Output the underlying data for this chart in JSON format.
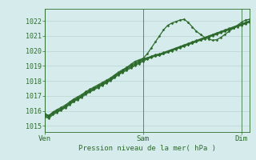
{
  "bg_color": "#d6ecec",
  "grid_color": "#b8d4d4",
  "line_color": "#2d6b2d",
  "ylabel_ticks": [
    1015,
    1016,
    1017,
    1018,
    1019,
    1020,
    1021,
    1022
  ],
  "ylim": [
    1014.6,
    1022.8
  ],
  "xlabel": "Pression niveau de la mer( hPa )",
  "xtick_labels": [
    "Ven",
    "Sam",
    "Dim"
  ],
  "xtick_positions": [
    0.0,
    0.48,
    0.96
  ],
  "xlim": [
    0.0,
    1.0
  ],
  "series_main": {
    "x": [
      0.0,
      0.02,
      0.04,
      0.06,
      0.08,
      0.1,
      0.12,
      0.14,
      0.16,
      0.18,
      0.2,
      0.22,
      0.24,
      0.26,
      0.28,
      0.3,
      0.32,
      0.34,
      0.36,
      0.38,
      0.4,
      0.42,
      0.44,
      0.46,
      0.48,
      0.5,
      0.52,
      0.54,
      0.56,
      0.58,
      0.6,
      0.62,
      0.64,
      0.66,
      0.68,
      0.7,
      0.72,
      0.74,
      0.76,
      0.78,
      0.8,
      0.82,
      0.84,
      0.86,
      0.88,
      0.9,
      0.92,
      0.94,
      0.96,
      0.98,
      1.0
    ],
    "y": [
      1015.8,
      1015.7,
      1015.9,
      1016.0,
      1016.1,
      1016.3,
      1016.5,
      1016.7,
      1016.8,
      1017.0,
      1017.2,
      1017.3,
      1017.5,
      1017.6,
      1017.8,
      1017.9,
      1018.1,
      1018.3,
      1018.5,
      1018.7,
      1018.9,
      1019.1,
      1019.3,
      1019.4,
      1019.5,
      1019.8,
      1020.2,
      1020.6,
      1021.0,
      1021.4,
      1021.7,
      1021.85,
      1021.95,
      1022.05,
      1022.1,
      1021.9,
      1021.6,
      1021.3,
      1021.1,
      1020.9,
      1020.8,
      1020.7,
      1020.75,
      1020.9,
      1021.1,
      1021.3,
      1021.5,
      1021.7,
      1021.9,
      1022.05,
      1022.1
    ]
  },
  "series_bundle": [
    {
      "x": [
        0.0,
        0.02,
        0.04,
        0.06,
        0.08,
        0.1,
        0.12,
        0.14,
        0.16,
        0.18,
        0.2,
        0.22,
        0.24,
        0.26,
        0.28,
        0.3,
        0.32,
        0.34,
        0.36,
        0.38,
        0.4,
        0.42,
        0.44,
        0.46,
        0.48,
        0.5,
        0.52,
        0.54,
        0.56,
        0.58,
        0.6,
        0.62,
        0.64,
        0.66,
        0.68,
        0.7,
        0.72,
        0.74,
        0.76,
        0.78,
        0.8,
        0.82,
        0.84,
        0.86,
        0.88,
        0.9,
        0.92,
        0.94,
        0.96,
        0.98,
        1.0
      ],
      "y": [
        1015.6,
        1015.5,
        1015.75,
        1015.9,
        1016.05,
        1016.2,
        1016.4,
        1016.6,
        1016.75,
        1016.9,
        1017.1,
        1017.25,
        1017.4,
        1017.55,
        1017.7,
        1017.85,
        1018.0,
        1018.2,
        1018.4,
        1018.55,
        1018.7,
        1018.85,
        1019.0,
        1019.15,
        1019.3,
        1019.45,
        1019.55,
        1019.65,
        1019.7,
        1019.8,
        1019.9,
        1020.0,
        1020.1,
        1020.2,
        1020.3,
        1020.4,
        1020.5,
        1020.6,
        1020.7,
        1020.8,
        1020.9,
        1021.0,
        1021.1,
        1021.2,
        1021.3,
        1021.4,
        1021.5,
        1021.6,
        1021.7,
        1021.8,
        1021.9
      ]
    },
    {
      "x": [
        0.0,
        0.02,
        0.04,
        0.06,
        0.08,
        0.1,
        0.12,
        0.14,
        0.16,
        0.18,
        0.2,
        0.22,
        0.24,
        0.26,
        0.28,
        0.3,
        0.32,
        0.34,
        0.36,
        0.38,
        0.4,
        0.42,
        0.44,
        0.46,
        0.48,
        0.5,
        0.52,
        0.54,
        0.56,
        0.58,
        0.6,
        0.62,
        0.64,
        0.66,
        0.68,
        0.7,
        0.72,
        0.74,
        0.76,
        0.78,
        0.8,
        0.82,
        0.84,
        0.86,
        0.88,
        0.9,
        0.92,
        0.94,
        0.96,
        0.98,
        1.0
      ],
      "y": [
        1015.65,
        1015.55,
        1015.8,
        1015.95,
        1016.1,
        1016.25,
        1016.45,
        1016.65,
        1016.8,
        1016.95,
        1017.15,
        1017.3,
        1017.45,
        1017.6,
        1017.75,
        1017.9,
        1018.05,
        1018.25,
        1018.45,
        1018.6,
        1018.75,
        1018.9,
        1019.05,
        1019.2,
        1019.35,
        1019.48,
        1019.58,
        1019.68,
        1019.73,
        1019.83,
        1019.93,
        1020.03,
        1020.13,
        1020.23,
        1020.33,
        1020.43,
        1020.53,
        1020.63,
        1020.73,
        1020.83,
        1020.93,
        1021.03,
        1021.13,
        1021.23,
        1021.33,
        1021.43,
        1021.53,
        1021.63,
        1021.73,
        1021.83,
        1021.93
      ]
    },
    {
      "x": [
        0.0,
        0.02,
        0.04,
        0.06,
        0.08,
        0.1,
        0.12,
        0.14,
        0.16,
        0.18,
        0.2,
        0.22,
        0.24,
        0.26,
        0.28,
        0.3,
        0.32,
        0.34,
        0.36,
        0.38,
        0.4,
        0.42,
        0.44,
        0.46,
        0.48,
        0.5,
        0.52,
        0.54,
        0.56,
        0.58,
        0.6,
        0.62,
        0.64,
        0.66,
        0.68,
        0.7,
        0.72,
        0.74,
        0.76,
        0.78,
        0.8,
        0.82,
        0.84,
        0.86,
        0.88,
        0.9,
        0.92,
        0.94,
        0.96,
        0.98,
        1.0
      ],
      "y": [
        1015.7,
        1015.6,
        1015.85,
        1016.0,
        1016.15,
        1016.3,
        1016.5,
        1016.7,
        1016.85,
        1017.0,
        1017.2,
        1017.35,
        1017.5,
        1017.65,
        1017.8,
        1017.95,
        1018.1,
        1018.3,
        1018.5,
        1018.65,
        1018.8,
        1018.95,
        1019.1,
        1019.25,
        1019.4,
        1019.5,
        1019.6,
        1019.7,
        1019.75,
        1019.85,
        1019.95,
        1020.05,
        1020.15,
        1020.25,
        1020.35,
        1020.45,
        1020.55,
        1020.65,
        1020.75,
        1020.85,
        1020.95,
        1021.05,
        1021.15,
        1021.25,
        1021.35,
        1021.45,
        1021.55,
        1021.65,
        1021.75,
        1021.85,
        1021.95
      ]
    },
    {
      "x": [
        0.0,
        0.02,
        0.04,
        0.06,
        0.08,
        0.1,
        0.12,
        0.14,
        0.16,
        0.18,
        0.2,
        0.22,
        0.24,
        0.26,
        0.28,
        0.3,
        0.32,
        0.34,
        0.36,
        0.38,
        0.4,
        0.42,
        0.44,
        0.46,
        0.48,
        0.5,
        0.52,
        0.54,
        0.56,
        0.58,
        0.6,
        0.62,
        0.64,
        0.66,
        0.68,
        0.7,
        0.72,
        0.74,
        0.76,
        0.78,
        0.8,
        0.82,
        0.84,
        0.86,
        0.88,
        0.9,
        0.92,
        0.94,
        0.96,
        0.98,
        1.0
      ],
      "y": [
        1015.75,
        1015.65,
        1015.9,
        1016.05,
        1016.2,
        1016.35,
        1016.55,
        1016.75,
        1016.9,
        1017.05,
        1017.25,
        1017.4,
        1017.55,
        1017.7,
        1017.85,
        1018.0,
        1018.15,
        1018.35,
        1018.55,
        1018.7,
        1018.85,
        1019.0,
        1019.15,
        1019.3,
        1019.45,
        1019.52,
        1019.62,
        1019.72,
        1019.77,
        1019.87,
        1019.97,
        1020.07,
        1020.17,
        1020.27,
        1020.37,
        1020.47,
        1020.57,
        1020.67,
        1020.77,
        1020.87,
        1020.97,
        1021.07,
        1021.17,
        1021.27,
        1021.37,
        1021.47,
        1021.57,
        1021.67,
        1021.77,
        1021.87,
        1021.97
      ]
    },
    {
      "x": [
        0.0,
        0.02,
        0.04,
        0.06,
        0.08,
        0.1,
        0.12,
        0.14,
        0.16,
        0.18,
        0.2,
        0.22,
        0.24,
        0.26,
        0.28,
        0.3,
        0.32,
        0.34,
        0.36,
        0.38,
        0.4,
        0.42,
        0.44,
        0.46,
        0.48,
        0.5,
        0.52,
        0.54,
        0.56,
        0.58,
        0.6,
        0.62,
        0.64,
        0.66,
        0.68,
        0.7,
        0.72,
        0.74,
        0.76,
        0.78,
        0.8,
        0.82,
        0.84,
        0.86,
        0.88,
        0.9,
        0.92,
        0.94,
        0.96,
        0.98,
        1.0
      ],
      "y": [
        1015.8,
        1015.7,
        1015.95,
        1016.1,
        1016.25,
        1016.4,
        1016.6,
        1016.8,
        1016.95,
        1017.1,
        1017.3,
        1017.45,
        1017.6,
        1017.75,
        1017.9,
        1018.05,
        1018.2,
        1018.4,
        1018.6,
        1018.75,
        1018.9,
        1019.05,
        1019.2,
        1019.35,
        1019.5,
        1019.55,
        1019.65,
        1019.75,
        1019.8,
        1019.9,
        1020.0,
        1020.1,
        1020.2,
        1020.3,
        1020.4,
        1020.5,
        1020.6,
        1020.7,
        1020.8,
        1020.9,
        1021.0,
        1021.1,
        1021.2,
        1021.3,
        1021.4,
        1021.5,
        1021.6,
        1021.7,
        1021.8,
        1021.9,
        1022.0
      ]
    }
  ]
}
